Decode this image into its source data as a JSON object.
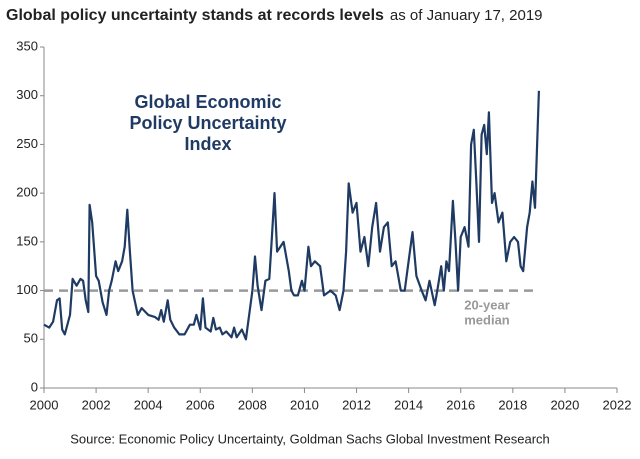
{
  "chart_data": {
    "type": "line",
    "title": "Global policy uncertainty stands at records levels",
    "title_note": "as of January 17, 2019",
    "annotation": [
      "Global Economic",
      "Policy Uncertainty",
      "Index"
    ],
    "median": 100,
    "median_label": [
      "20-year",
      "median"
    ],
    "median_color": "#999999",
    "source": "Source: Economic Policy Uncertainty, Goldman Sachs Global Investment Research",
    "xlim": [
      2000,
      2022
    ],
    "xticks": [
      2000,
      2002,
      2004,
      2006,
      2008,
      2010,
      2012,
      2014,
      2016,
      2018,
      2020,
      2022
    ],
    "ylim": [
      0,
      350
    ],
    "yticks": [
      0,
      50,
      100,
      150,
      200,
      250,
      300,
      350
    ],
    "grid": false,
    "series": [
      {
        "color": "#1f3b63",
        "x": [
          2000.0,
          2000.2,
          2000.35,
          2000.5,
          2000.6,
          2000.7,
          2000.8,
          2001.0,
          2001.1,
          2001.25,
          2001.4,
          2001.5,
          2001.6,
          2001.7,
          2001.75,
          2001.85,
          2002.0,
          2002.1,
          2002.25,
          2002.4,
          2002.5,
          2002.6,
          2002.75,
          2002.85,
          2003.0,
          2003.1,
          2003.2,
          2003.3,
          2003.4,
          2003.6,
          2003.75,
          2004.0,
          2004.25,
          2004.4,
          2004.5,
          2004.6,
          2004.75,
          2004.85,
          2005.0,
          2005.2,
          2005.4,
          2005.6,
          2005.75,
          2005.85,
          2006.0,
          2006.1,
          2006.2,
          2006.4,
          2006.5,
          2006.6,
          2006.75,
          2006.85,
          2007.0,
          2007.2,
          2007.3,
          2007.4,
          2007.6,
          2007.75,
          2007.9,
          2008.0,
          2008.1,
          2008.2,
          2008.35,
          2008.5,
          2008.65,
          2008.75,
          2008.85,
          2008.95,
          2009.2,
          2009.4,
          2009.5,
          2009.6,
          2009.75,
          2009.9,
          2010.0,
          2010.15,
          2010.25,
          2010.4,
          2010.6,
          2010.75,
          2011.0,
          2011.2,
          2011.35,
          2011.5,
          2011.6,
          2011.7,
          2011.85,
          2012.0,
          2012.15,
          2012.3,
          2012.45,
          2012.6,
          2012.75,
          2012.9,
          2013.05,
          2013.2,
          2013.35,
          2013.5,
          2013.7,
          2013.85,
          2014.0,
          2014.15,
          2014.3,
          2014.5,
          2014.65,
          2014.8,
          2015.0,
          2015.1,
          2015.25,
          2015.35,
          2015.45,
          2015.55,
          2015.7,
          2015.8,
          2015.9,
          2016.0,
          2016.15,
          2016.3,
          2016.4,
          2016.5,
          2016.6,
          2016.7,
          2016.8,
          2016.9,
          2017.0,
          2017.08,
          2017.2,
          2017.3,
          2017.45,
          2017.6,
          2017.75,
          2017.9,
          2018.05,
          2018.2,
          2018.3,
          2018.4,
          2018.55,
          2018.65,
          2018.75,
          2018.85,
          2018.92,
          2019.0
        ],
        "values": [
          65,
          62,
          68,
          90,
          92,
          60,
          55,
          75,
          112,
          105,
          112,
          110,
          90,
          78,
          188,
          170,
          115,
          110,
          88,
          75,
          100,
          110,
          130,
          120,
          130,
          145,
          183,
          140,
          100,
          75,
          82,
          75,
          73,
          70,
          80,
          68,
          90,
          70,
          62,
          55,
          55,
          65,
          65,
          75,
          60,
          92,
          62,
          58,
          72,
          60,
          62,
          55,
          58,
          52,
          62,
          52,
          60,
          50,
          80,
          100,
          135,
          105,
          80,
          110,
          112,
          155,
          200,
          140,
          150,
          120,
          100,
          95,
          95,
          110,
          100,
          145,
          125,
          130,
          125,
          95,
          100,
          95,
          80,
          100,
          140,
          210,
          180,
          190,
          140,
          155,
          125,
          165,
          190,
          140,
          165,
          170,
          125,
          130,
          100,
          100,
          130,
          160,
          115,
          100,
          90,
          110,
          85,
          100,
          125,
          100,
          130,
          120,
          192,
          150,
          100,
          155,
          165,
          145,
          250,
          265,
          210,
          150,
          260,
          270,
          240,
          283,
          190,
          200,
          170,
          180,
          130,
          150,
          155,
          150,
          125,
          120,
          165,
          180,
          212,
          185,
          240,
          305
        ]
      }
    ]
  }
}
